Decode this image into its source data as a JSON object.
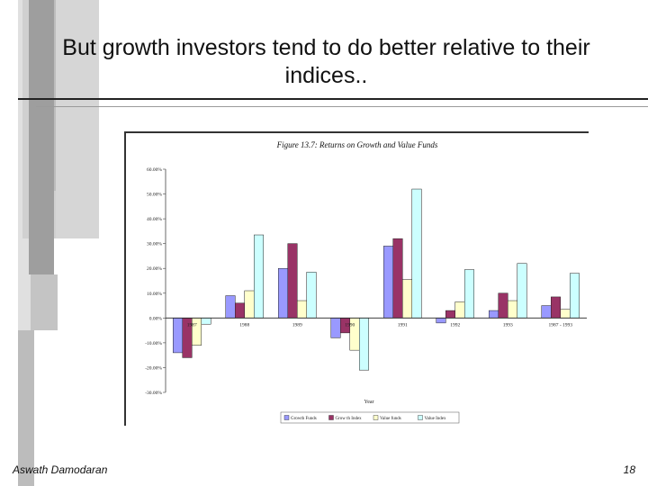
{
  "slide": {
    "title": "But growth investors tend to do better relative to their indices..",
    "author": "Aswath Damodaran",
    "page_number": "18"
  },
  "colors": {
    "growth_funds": "#9999ff",
    "growth_index": "#993366",
    "value_funds": "#ffffcc",
    "value_index": "#ccffff"
  },
  "chart_data": {
    "type": "bar",
    "title": "Figure 13.7: Returns on Growth and Value Funds",
    "xlabel": "Year",
    "ylabel": "",
    "categories": [
      "1987",
      "1988",
      "1989",
      "1990",
      "1991",
      "1992",
      "1993",
      "1987 - 1993"
    ],
    "y_ticks": [
      "60.00%",
      "50.00%",
      "40.00%",
      "30.00%",
      "20.00%",
      "10.00%",
      "0.00%",
      "-10.00%",
      "-20.00%",
      "-30.00%"
    ],
    "ylim": [
      -30,
      60
    ],
    "grid": false,
    "legend_position": "bottom",
    "series": [
      {
        "name": "Growth Funds",
        "values": [
          -14,
          9,
          20,
          -8,
          29,
          -2,
          3,
          5
        ]
      },
      {
        "name": "Grow th Index",
        "values": [
          -16,
          6,
          30,
          -6,
          32,
          3,
          10,
          8.5
        ]
      },
      {
        "name": "Value funds",
        "values": [
          -11,
          11,
          7,
          -13,
          15.5,
          6.5,
          7,
          3.5
        ]
      },
      {
        "name": "Value Index",
        "values": [
          -2.5,
          33.5,
          18.5,
          -21,
          52,
          19.5,
          22,
          18
        ]
      }
    ]
  }
}
